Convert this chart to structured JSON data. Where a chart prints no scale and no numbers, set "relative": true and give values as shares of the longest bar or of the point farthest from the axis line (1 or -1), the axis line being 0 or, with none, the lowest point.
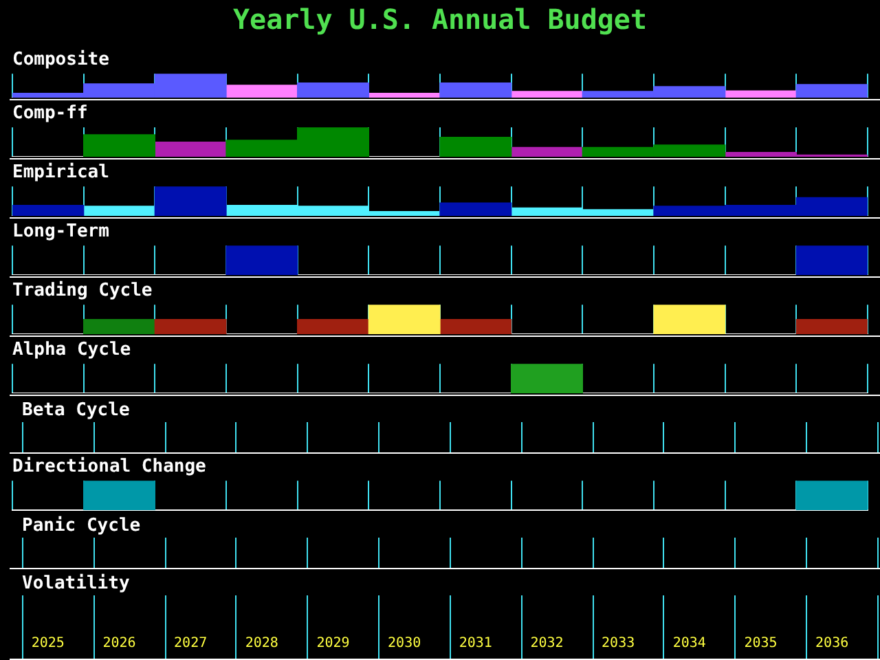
{
  "chart_data": [
    {
      "type": "bar",
      "title": "Yearly U.S. Annual Budget",
      "subtitle": "Composite",
      "relative": true,
      "stacked": true,
      "grid": "x",
      "tick_labels": false,
      "categories": [
        "2025",
        "2026",
        "2027",
        "2028",
        "2029",
        "2030",
        "2031",
        "2032",
        "2033",
        "2034",
        "2035",
        "2036"
      ],
      "series": [
        {
          "color": "#5a5aff",
          "values": [
            0.18,
            0.58,
            1,
            null,
            0.61,
            null,
            0.61,
            null,
            0.26,
            0.46,
            null,
            0.55
          ]
        },
        {
          "color": "#ff80ff",
          "values": [
            null,
            null,
            null,
            0.52,
            null,
            0.18,
            null,
            0.26,
            null,
            null,
            0.28,
            null
          ]
        }
      ]
    },
    {
      "type": "bar",
      "subtitle": "Comp-ff",
      "relative": true,
      "stacked": true,
      "grid": "x",
      "tick_labels": false,
      "categories": [
        "2025",
        "2026",
        "2027",
        "2028",
        "2029",
        "2030",
        "2031",
        "2032",
        "2033",
        "2034",
        "2035",
        "2036"
      ],
      "series": [
        {
          "color": "#008800",
          "values": [
            null,
            0.75,
            null,
            0.56,
            1,
            null,
            0.66,
            null,
            0.32,
            0.4,
            null,
            null
          ]
        },
        {
          "color": "#b020b0",
          "values": [
            null,
            null,
            0.5,
            null,
            null,
            null,
            null,
            0.32,
            null,
            null,
            0.15,
            0.06
          ]
        }
      ]
    },
    {
      "type": "bar",
      "subtitle": "Empirical",
      "relative": true,
      "stacked": true,
      "grid": "x",
      "tick_labels": false,
      "categories": [
        "2025",
        "2026",
        "2027",
        "2028",
        "2029",
        "2030",
        "2031",
        "2032",
        "2033",
        "2034",
        "2035",
        "2036"
      ],
      "series": [
        {
          "color": "#0010b0",
          "values": [
            0.36,
            null,
            1,
            null,
            null,
            null,
            0.44,
            null,
            null,
            0.33,
            0.36,
            0.62
          ]
        },
        {
          "color": "#50f0ff",
          "values": [
            null,
            0.33,
            null,
            0.36,
            0.33,
            0.15,
            null,
            0.27,
            0.21,
            null,
            null,
            null
          ]
        }
      ]
    },
    {
      "type": "bar",
      "subtitle": "Long-Term",
      "relative": true,
      "grid": "x",
      "tick_labels": false,
      "categories": [
        "2025",
        "2026",
        "2027",
        "2028",
        "2029",
        "2030",
        "2031",
        "2032",
        "2033",
        "2034",
        "2035",
        "2036"
      ],
      "series": [
        {
          "color": "#0010b0",
          "values": [
            null,
            null,
            null,
            1,
            null,
            null,
            null,
            null,
            null,
            null,
            null,
            1
          ]
        }
      ]
    },
    {
      "type": "bar",
      "subtitle": "Trading Cycle",
      "relative": true,
      "stacked": true,
      "grid": "x",
      "tick_labels": false,
      "categories": [
        "2025",
        "2026",
        "2027",
        "2028",
        "2029",
        "2030",
        "2031",
        "2032",
        "2033",
        "2034",
        "2035",
        "2036"
      ],
      "series": [
        {
          "color": "#ffee50",
          "values": [
            null,
            null,
            null,
            null,
            null,
            1,
            null,
            null,
            null,
            1,
            null,
            null
          ]
        },
        {
          "color": "#a02010",
          "values": [
            null,
            null,
            0.5,
            null,
            0.5,
            null,
            0.5,
            null,
            null,
            null,
            null,
            0.5
          ]
        },
        {
          "color": "#108010",
          "values": [
            null,
            0.5,
            null,
            null,
            null,
            null,
            null,
            null,
            null,
            null,
            null,
            null
          ]
        }
      ]
    },
    {
      "type": "bar",
      "subtitle": "Alpha Cycle",
      "relative": true,
      "grid": "x",
      "tick_labels": false,
      "categories": [
        "2025",
        "2026",
        "2027",
        "2028",
        "2029",
        "2030",
        "2031",
        "2032",
        "2033",
        "2034",
        "2035",
        "2036"
      ],
      "series": [
        {
          "color": "#20a020",
          "values": [
            null,
            null,
            null,
            null,
            null,
            null,
            null,
            1,
            null,
            null,
            null,
            null
          ]
        }
      ]
    },
    {
      "type": "other",
      "subtitle": "Beta Cycle"
    },
    {
      "type": "bar",
      "subtitle": "Directional Change",
      "relative": true,
      "grid": "x",
      "tick_labels": "x",
      "categories": [
        "2025",
        "2026",
        "2027",
        "2028",
        "2029",
        "2030",
        "2031",
        "2032",
        "2033",
        "2034",
        "2035",
        "2036"
      ],
      "series": [
        {
          "color": "#0098a8",
          "values": [
            null,
            1,
            null,
            null,
            null,
            null,
            null,
            null,
            null,
            null,
            null,
            1
          ]
        }
      ]
    },
    {
      "type": "other",
      "subtitle": "Panic Cycle"
    },
    {
      "type": "other",
      "subtitle": "Volatility"
    }
  ]
}
